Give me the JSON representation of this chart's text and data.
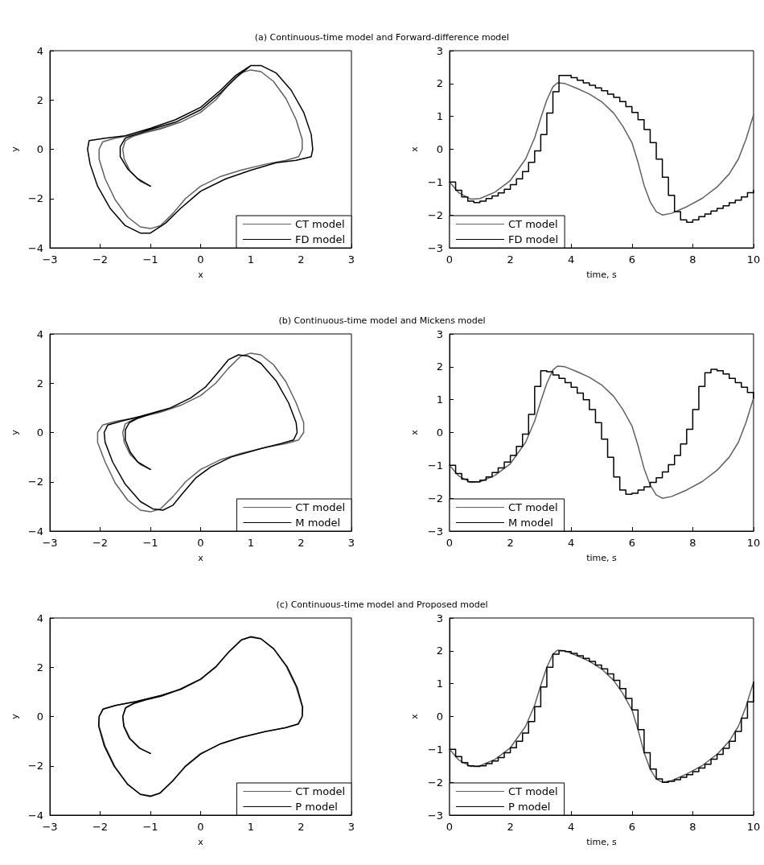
{
  "chart_data": [
    {
      "type": "line",
      "title": "(a) Continuous-time model and Forward-difference model",
      "xlabel": "x",
      "ylabel": "y",
      "xlim": [
        -3,
        3
      ],
      "xticks": [
        -3,
        -2,
        -1,
        0,
        1,
        2,
        3
      ],
      "ylim": [
        -4,
        4
      ],
      "yticks": [
        -4,
        -2,
        0,
        2,
        4
      ],
      "legend": "bottom right",
      "series": [
        {
          "name": "CT model",
          "color": "#606060",
          "x": [
            -1,
            -1.2,
            -1.4,
            -1.52,
            -1.55,
            -1.5,
            -1.35,
            -1.1,
            -0.8,
            -0.4,
            0,
            0.3,
            0.55,
            0.8,
            1.0,
            1.2,
            1.45,
            1.7,
            1.9,
            2.02,
            2.02,
            1.95,
            1.7,
            1.3,
            0.8,
            0.4,
            0,
            -0.3,
            -0.55,
            -0.8,
            -1.0,
            -1.2,
            -1.45,
            -1.7,
            -1.9,
            -2.02,
            -2.02,
            -1.95,
            -1.7,
            -1.3,
            -0.8,
            -0.4,
            0,
            0.3,
            0.55,
            0.8,
            1.0
          ],
          "values": [
            -1.5,
            -1.3,
            -0.9,
            -0.4,
            0,
            0.35,
            0.52,
            0.68,
            0.82,
            1.1,
            1.5,
            2.0,
            2.6,
            3.1,
            3.22,
            3.15,
            2.75,
            2.05,
            1.2,
            0.4,
            0,
            -0.3,
            -0.45,
            -0.6,
            -0.85,
            -1.1,
            -1.5,
            -2.0,
            -2.6,
            -3.1,
            -3.22,
            -3.15,
            -2.75,
            -2.05,
            -1.2,
            -0.4,
            0,
            0.3,
            0.45,
            0.6,
            0.85,
            1.1,
            1.5,
            2.0,
            2.6,
            3.1,
            3.22
          ]
        },
        {
          "name": "FD model",
          "color": "#000000",
          "x": [
            -1,
            -1.25,
            -1.45,
            -1.6,
            -1.6,
            -1.5,
            -1.3,
            -1,
            -0.5,
            0,
            0.4,
            0.7,
            1.0,
            1.2,
            1.5,
            1.8,
            2.05,
            2.2,
            2.23,
            2.2,
            1.9,
            1.5,
            1.0,
            0.5,
            0,
            -0.4,
            -0.7,
            -1.0,
            -1.2,
            -1.5,
            -1.8,
            -2.05,
            -2.2,
            -2.25,
            -2.22,
            -1.9,
            -1.5,
            -1.0,
            -0.5,
            0,
            0.4,
            0.7,
            1.0
          ],
          "values": [
            -1.5,
            -1.2,
            -0.8,
            -0.3,
            0.1,
            0.45,
            0.6,
            0.8,
            1.1,
            1.6,
            2.3,
            2.9,
            3.4,
            3.4,
            3.1,
            2.4,
            1.5,
            0.6,
            0,
            -0.3,
            -0.45,
            -0.55,
            -0.85,
            -1.2,
            -1.7,
            -2.4,
            -3.0,
            -3.4,
            -3.4,
            -3.1,
            -2.4,
            -1.5,
            -0.6,
            0,
            0.35,
            0.45,
            0.55,
            0.85,
            1.2,
            1.7,
            2.4,
            3.0,
            3.4
          ]
        }
      ]
    },
    {
      "type": "line",
      "xlabel": "time, s",
      "ylabel": "x",
      "xlim": [
        0,
        10
      ],
      "xticks": [
        0,
        2,
        4,
        6,
        8,
        10
      ],
      "ylim": [
        -3,
        3
      ],
      "yticks": [
        -3,
        -2,
        -1,
        0,
        1,
        2,
        3
      ],
      "legend": "bottom left",
      "series": [
        {
          "name": "CT model",
          "color": "#606060",
          "x": [
            0,
            0.3,
            0.7,
            1.0,
            1.5,
            2.0,
            2.5,
            2.8,
            3.0,
            3.2,
            3.4,
            3.55,
            3.8,
            4.2,
            4.6,
            5.0,
            5.4,
            5.7,
            6.0,
            6.2,
            6.4,
            6.6,
            6.8,
            7.0,
            7.3,
            7.8,
            8.3,
            8.8,
            9.2,
            9.5,
            9.75,
            10
          ],
          "values": [
            -1.0,
            -1.32,
            -1.52,
            -1.5,
            -1.3,
            -0.95,
            -0.3,
            0.35,
            0.95,
            1.5,
            1.9,
            2.02,
            2.0,
            1.85,
            1.68,
            1.45,
            1.1,
            0.7,
            0.2,
            -0.4,
            -1.1,
            -1.6,
            -1.9,
            -2.0,
            -1.95,
            -1.75,
            -1.5,
            -1.15,
            -0.75,
            -0.3,
            0.3,
            1.05
          ]
        },
        {
          "name": "FD model",
          "color": "#000000",
          "type": "step",
          "x": [
            0,
            0.2,
            0.4,
            0.6,
            0.8,
            1,
            1.2,
            1.4,
            1.6,
            1.8,
            2,
            2.2,
            2.4,
            2.6,
            2.8,
            3,
            3.2,
            3.4,
            3.6,
            3.8,
            4,
            4.2,
            4.4,
            4.6,
            4.8,
            5,
            5.2,
            5.4,
            5.6,
            5.8,
            6,
            6.2,
            6.4,
            6.6,
            6.8,
            7,
            7.2,
            7.4,
            7.6,
            7.8,
            8,
            8.2,
            8.4,
            8.6,
            8.8,
            9,
            9.2,
            9.4,
            9.6,
            9.8,
            10
          ],
          "values": [
            -1.0,
            -1.25,
            -1.45,
            -1.58,
            -1.62,
            -1.58,
            -1.5,
            -1.42,
            -1.33,
            -1.22,
            -1.08,
            -0.9,
            -0.68,
            -0.4,
            -0.05,
            0.45,
            1.1,
            1.75,
            2.25,
            2.25,
            2.18,
            2.1,
            2.02,
            1.95,
            1.87,
            1.78,
            1.68,
            1.58,
            1.45,
            1.3,
            1.12,
            0.9,
            0.6,
            0.2,
            -0.3,
            -0.85,
            -1.4,
            -1.9,
            -2.15,
            -2.22,
            -2.15,
            -2.05,
            -1.97,
            -1.88,
            -1.8,
            -1.72,
            -1.63,
            -1.55,
            -1.45,
            -1.32,
            -1.25
          ]
        }
      ]
    },
    {
      "type": "line",
      "title": "(b) Continuous-time model and Mickens model",
      "xlabel": "x",
      "ylabel": "y",
      "xlim": [
        -3,
        3
      ],
      "xticks": [
        -3,
        -2,
        -1,
        0,
        1,
        2,
        3
      ],
      "ylim": [
        -4,
        4
      ],
      "yticks": [
        -4,
        -2,
        0,
        2,
        4
      ],
      "legend": "bottom right",
      "series": [
        {
          "name": "CT model",
          "color": "#606060",
          "x": [
            -1,
            -1.2,
            -1.4,
            -1.52,
            -1.55,
            -1.5,
            -1.35,
            -1.1,
            -0.8,
            -0.4,
            0,
            0.3,
            0.55,
            0.8,
            1.0,
            1.2,
            1.45,
            1.7,
            1.9,
            2.05,
            2.05,
            1.95,
            1.7,
            1.3,
            0.8,
            0.4,
            0,
            -0.3,
            -0.55,
            -0.8,
            -1.0,
            -1.2,
            -1.45,
            -1.7,
            -1.9,
            -2.05,
            -2.05,
            -1.95,
            -1.7,
            -1.3,
            -0.8,
            -0.4,
            0,
            0.3,
            0.55,
            0.8,
            1.0
          ],
          "values": [
            -1.5,
            -1.3,
            -0.9,
            -0.4,
            0,
            0.35,
            0.52,
            0.68,
            0.82,
            1.1,
            1.5,
            2.0,
            2.6,
            3.1,
            3.22,
            3.15,
            2.75,
            2.05,
            1.2,
            0.4,
            0,
            -0.3,
            -0.45,
            -0.6,
            -0.85,
            -1.1,
            -1.5,
            -2.0,
            -2.6,
            -3.1,
            -3.22,
            -3.15,
            -2.75,
            -2.05,
            -1.2,
            -0.4,
            0,
            0.3,
            0.45,
            0.6,
            0.85,
            1.1,
            1.5,
            2.0,
            2.6,
            3.1,
            3.22
          ]
        },
        {
          "name": "M model",
          "color": "#000000",
          "x": [
            -1,
            -1.25,
            -1.4,
            -1.5,
            -1.5,
            -1.42,
            -1.25,
            -1.0,
            -0.6,
            -0.2,
            0.1,
            0.35,
            0.55,
            0.75,
            0.95,
            1.2,
            1.5,
            1.75,
            1.9,
            1.92,
            1.85,
            1.6,
            1.2,
            0.6,
            0.2,
            -0.1,
            -0.35,
            -0.55,
            -0.75,
            -0.95,
            -1.2,
            -1.5,
            -1.75,
            -1.9,
            -1.92,
            -1.85,
            -1.6,
            -1.2,
            -0.6,
            -0.2,
            0.1,
            0.35,
            0.55,
            0.75
          ],
          "values": [
            -1.5,
            -1.2,
            -0.8,
            -0.3,
            0.1,
            0.4,
            0.58,
            0.75,
            1.0,
            1.4,
            1.85,
            2.45,
            2.95,
            3.15,
            3.1,
            2.8,
            2.1,
            1.2,
            0.4,
            0,
            -0.3,
            -0.45,
            -0.65,
            -1.0,
            -1.4,
            -1.85,
            -2.45,
            -2.95,
            -3.15,
            -3.1,
            -2.8,
            -2.1,
            -1.2,
            -0.4,
            0,
            0.3,
            0.45,
            0.65,
            1.0,
            1.4,
            1.85,
            2.45,
            2.95,
            3.15
          ]
        }
      ]
    },
    {
      "type": "line",
      "xlabel": "time, s",
      "ylabel": "x",
      "xlim": [
        0,
        10
      ],
      "xticks": [
        0,
        2,
        4,
        6,
        8,
        10
      ],
      "ylim": [
        -3,
        3
      ],
      "yticks": [
        -3,
        -2,
        -1,
        0,
        1,
        2,
        3
      ],
      "legend": "bottom left",
      "series": [
        {
          "name": "CT model",
          "color": "#606060",
          "x": [
            0,
            0.3,
            0.7,
            1.0,
            1.5,
            2.0,
            2.5,
            2.8,
            3.0,
            3.2,
            3.4,
            3.55,
            3.8,
            4.2,
            4.6,
            5.0,
            5.4,
            5.7,
            6.0,
            6.2,
            6.4,
            6.6,
            6.8,
            7.0,
            7.3,
            7.8,
            8.3,
            8.8,
            9.2,
            9.5,
            9.75,
            10
          ],
          "values": [
            -1.0,
            -1.32,
            -1.52,
            -1.5,
            -1.3,
            -0.95,
            -0.3,
            0.35,
            0.95,
            1.5,
            1.9,
            2.02,
            2.0,
            1.85,
            1.68,
            1.45,
            1.1,
            0.7,
            0.2,
            -0.4,
            -1.1,
            -1.6,
            -1.9,
            -2.0,
            -1.95,
            -1.75,
            -1.5,
            -1.15,
            -0.75,
            -0.3,
            0.3,
            1.05
          ]
        },
        {
          "name": "M model",
          "color": "#000000",
          "type": "step",
          "x": [
            0,
            0.2,
            0.4,
            0.6,
            0.8,
            1,
            1.2,
            1.4,
            1.6,
            1.8,
            2,
            2.2,
            2.4,
            2.6,
            2.8,
            3,
            3.2,
            3.4,
            3.6,
            3.8,
            4,
            4.2,
            4.4,
            4.6,
            4.8,
            5,
            5.2,
            5.4,
            5.6,
            5.8,
            6,
            6.2,
            6.4,
            6.6,
            6.8,
            7,
            7.2,
            7.4,
            7.6,
            7.8,
            8,
            8.2,
            8.4,
            8.6,
            8.8,
            9,
            9.2,
            9.4,
            9.6,
            9.8,
            10
          ],
          "values": [
            -1.0,
            -1.25,
            -1.42,
            -1.5,
            -1.5,
            -1.45,
            -1.35,
            -1.22,
            -1.08,
            -0.9,
            -0.7,
            -0.42,
            -0.05,
            0.55,
            1.4,
            1.88,
            1.85,
            1.75,
            1.65,
            1.52,
            1.38,
            1.2,
            1.0,
            0.7,
            0.3,
            -0.2,
            -0.75,
            -1.35,
            -1.75,
            -1.88,
            -1.85,
            -1.75,
            -1.65,
            -1.52,
            -1.38,
            -1.2,
            -0.98,
            -0.7,
            -0.35,
            0.1,
            0.7,
            1.4,
            1.82,
            1.92,
            1.88,
            1.78,
            1.65,
            1.52,
            1.38,
            1.22,
            1.05
          ]
        }
      ]
    },
    {
      "type": "line",
      "title": "(c) Continuous-time model and Proposed model",
      "xlabel": "x",
      "ylabel": "y",
      "xlim": [
        -3,
        3
      ],
      "xticks": [
        -3,
        -2,
        -1,
        0,
        1,
        2,
        3
      ],
      "ylim": [
        -4,
        4
      ],
      "yticks": [
        -4,
        -2,
        0,
        2,
        4
      ],
      "legend": "bottom right",
      "series": [
        {
          "name": "CT model",
          "color": "#606060",
          "x": [
            -1,
            -1.2,
            -1.4,
            -1.52,
            -1.55,
            -1.5,
            -1.35,
            -1.1,
            -0.8,
            -0.4,
            0,
            0.3,
            0.55,
            0.8,
            1.0,
            1.2,
            1.45,
            1.7,
            1.9,
            2.02,
            2.02,
            1.95,
            1.7,
            1.3,
            0.8,
            0.4,
            0,
            -0.3,
            -0.55,
            -0.8,
            -1.0,
            -1.2,
            -1.45,
            -1.7,
            -1.9,
            -2.02,
            -2.02,
            -1.95,
            -1.7,
            -1.3,
            -0.8,
            -0.4,
            0,
            0.3,
            0.55,
            0.8,
            1.0
          ],
          "values": [
            -1.5,
            -1.3,
            -0.9,
            -0.4,
            0,
            0.35,
            0.52,
            0.68,
            0.82,
            1.1,
            1.5,
            2.0,
            2.6,
            3.1,
            3.22,
            3.15,
            2.75,
            2.05,
            1.2,
            0.4,
            0,
            -0.3,
            -0.45,
            -0.6,
            -0.85,
            -1.1,
            -1.5,
            -2.0,
            -2.6,
            -3.1,
            -3.22,
            -3.15,
            -2.75,
            -2.05,
            -1.2,
            -0.4,
            0,
            0.3,
            0.45,
            0.6,
            0.85,
            1.1,
            1.5,
            2.0,
            2.6,
            3.1,
            3.22
          ]
        },
        {
          "name": "P model",
          "color": "#000000",
          "x": [
            -1,
            -1.22,
            -1.42,
            -1.53,
            -1.55,
            -1.49,
            -1.33,
            -1.1,
            -0.78,
            -0.4,
            0,
            0.3,
            0.56,
            0.82,
            1.0,
            1.2,
            1.46,
            1.72,
            1.92,
            2.03,
            2.02,
            1.94,
            1.68,
            1.28,
            0.78,
            0.38,
            0,
            -0.3,
            -0.56,
            -0.82,
            -1.0,
            -1.2,
            -1.46,
            -1.72,
            -1.92,
            -2.03,
            -2.02,
            -1.94,
            -1.68,
            -1.28,
            -0.78,
            -0.38,
            0,
            0.3,
            0.56,
            0.82,
            1.0
          ],
          "values": [
            -1.5,
            -1.28,
            -0.88,
            -0.4,
            0,
            0.36,
            0.53,
            0.68,
            0.83,
            1.12,
            1.52,
            2.02,
            2.62,
            3.12,
            3.24,
            3.16,
            2.74,
            2.02,
            1.18,
            0.38,
            0,
            -0.3,
            -0.46,
            -0.61,
            -0.86,
            -1.12,
            -1.52,
            -2.02,
            -2.62,
            -3.12,
            -3.24,
            -3.16,
            -2.74,
            -2.02,
            -1.18,
            -0.38,
            0,
            0.3,
            0.46,
            0.61,
            0.86,
            1.12,
            1.52,
            2.02,
            2.62,
            3.12,
            3.24
          ]
        }
      ]
    },
    {
      "type": "line",
      "xlabel": "time, s",
      "ylabel": "x",
      "xlim": [
        0,
        10
      ],
      "xticks": [
        0,
        2,
        4,
        6,
        8,
        10
      ],
      "ylim": [
        -3,
        3
      ],
      "yticks": [
        -3,
        -2,
        -1,
        0,
        1,
        2,
        3
      ],
      "legend": "bottom left",
      "series": [
        {
          "name": "CT model",
          "color": "#606060",
          "x": [
            0,
            0.3,
            0.7,
            1.0,
            1.5,
            2.0,
            2.5,
            2.8,
            3.0,
            3.2,
            3.4,
            3.55,
            3.8,
            4.2,
            4.6,
            5.0,
            5.4,
            5.7,
            6.0,
            6.2,
            6.4,
            6.6,
            6.8,
            7.0,
            7.3,
            7.8,
            8.3,
            8.8,
            9.2,
            9.5,
            9.75,
            10
          ],
          "values": [
            -1.0,
            -1.32,
            -1.52,
            -1.5,
            -1.3,
            -0.95,
            -0.3,
            0.35,
            0.95,
            1.5,
            1.9,
            2.02,
            2.0,
            1.85,
            1.68,
            1.45,
            1.1,
            0.7,
            0.2,
            -0.4,
            -1.1,
            -1.6,
            -1.9,
            -2.0,
            -1.95,
            -1.75,
            -1.5,
            -1.15,
            -0.75,
            -0.3,
            0.3,
            1.05
          ]
        },
        {
          "name": "P model",
          "color": "#000000",
          "type": "step",
          "x": [
            0,
            0.2,
            0.4,
            0.6,
            0.8,
            1,
            1.2,
            1.4,
            1.6,
            1.8,
            2,
            2.2,
            2.4,
            2.6,
            2.8,
            3,
            3.2,
            3.4,
            3.6,
            3.8,
            4,
            4.2,
            4.4,
            4.6,
            4.8,
            5,
            5.2,
            5.4,
            5.6,
            5.8,
            6,
            6.2,
            6.4,
            6.6,
            6.8,
            7,
            7.2,
            7.4,
            7.6,
            7.8,
            8,
            8.2,
            8.4,
            8.6,
            8.8,
            9,
            9.2,
            9.4,
            9.6,
            9.8,
            10
          ],
          "values": [
            -1.0,
            -1.22,
            -1.4,
            -1.5,
            -1.52,
            -1.5,
            -1.43,
            -1.35,
            -1.25,
            -1.1,
            -0.95,
            -0.75,
            -0.5,
            -0.15,
            0.3,
            0.9,
            1.5,
            1.9,
            2.0,
            1.98,
            1.92,
            1.85,
            1.77,
            1.68,
            1.57,
            1.45,
            1.3,
            1.1,
            0.85,
            0.55,
            0.2,
            -0.4,
            -1.1,
            -1.6,
            -1.9,
            -2.0,
            -1.97,
            -1.92,
            -1.85,
            -1.77,
            -1.68,
            -1.57,
            -1.45,
            -1.3,
            -1.15,
            -0.97,
            -0.75,
            -0.45,
            -0.05,
            0.45,
            1.05
          ]
        }
      ]
    }
  ]
}
